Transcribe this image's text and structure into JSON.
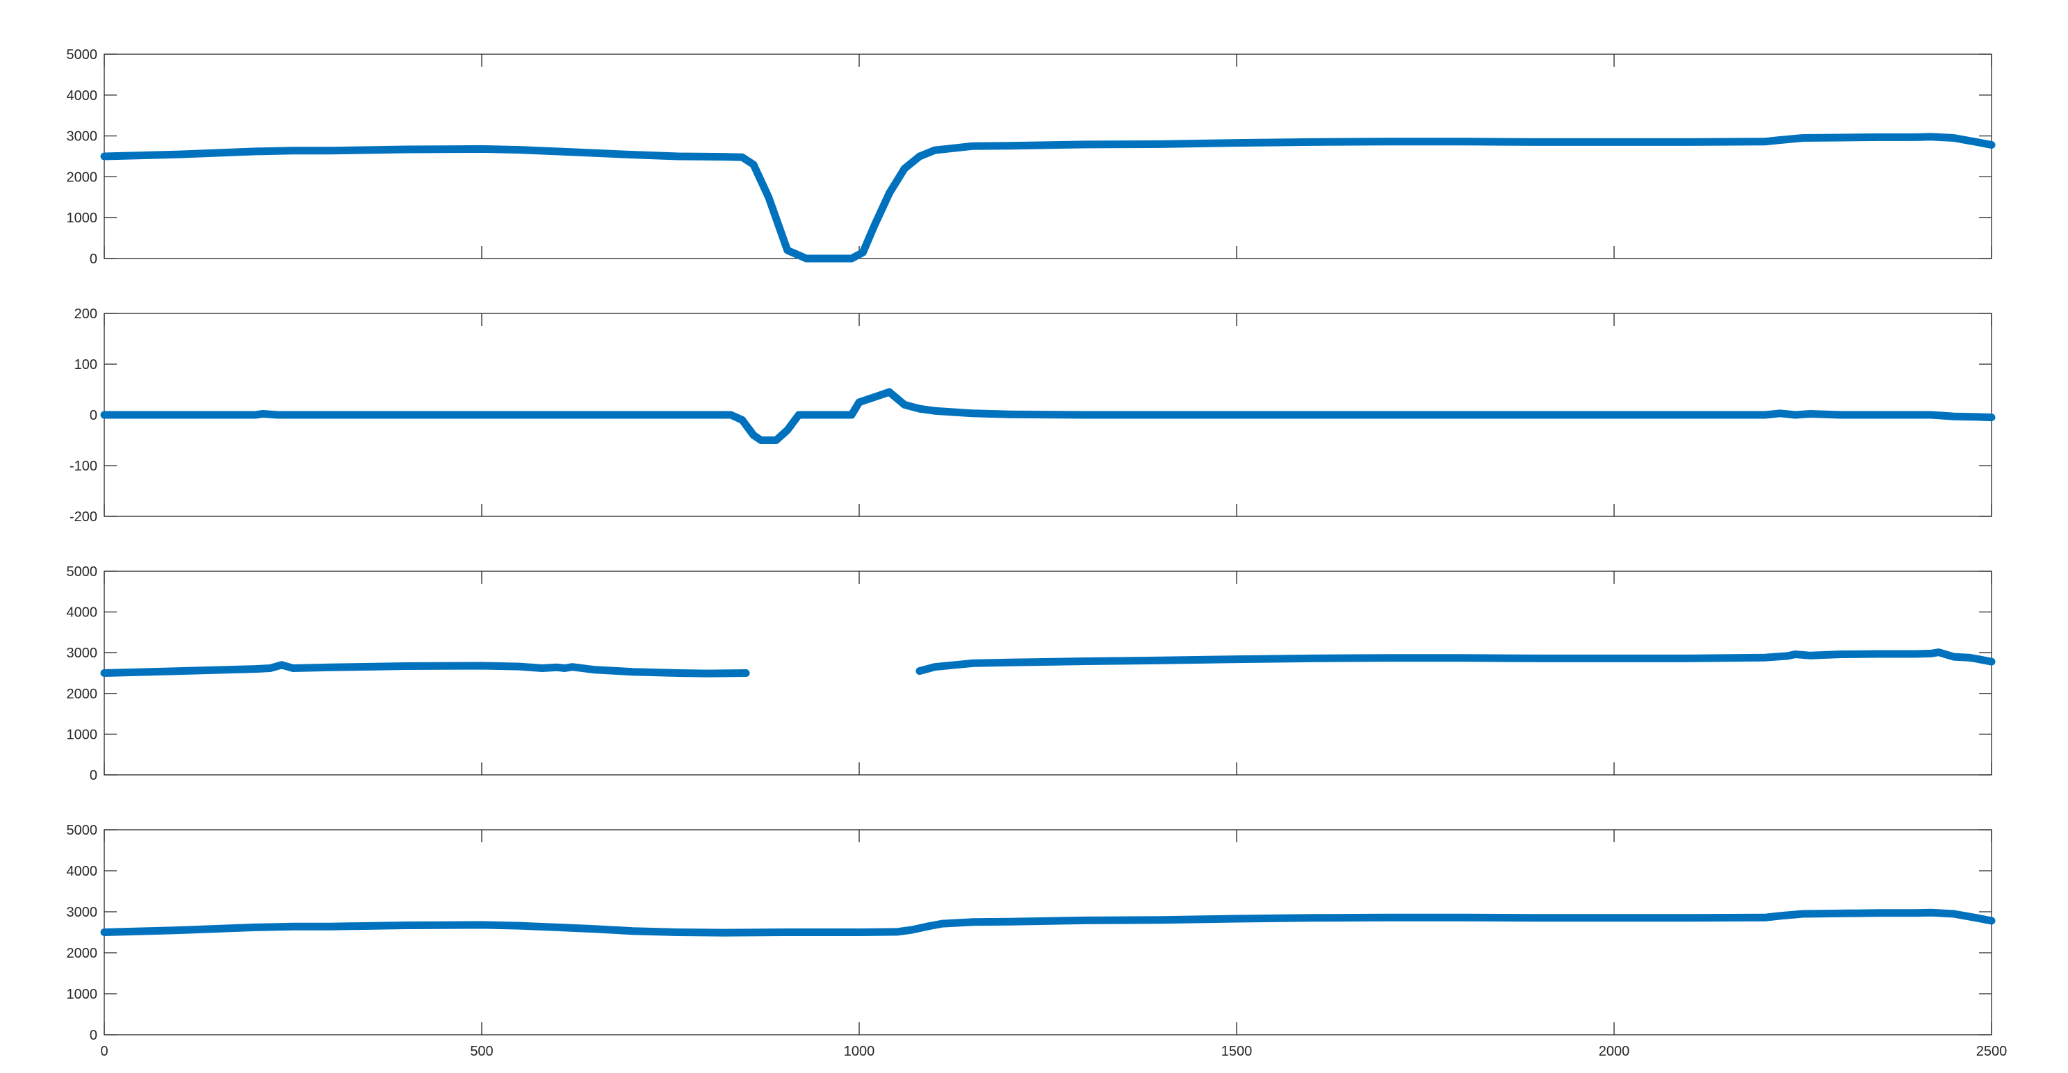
{
  "chart_data": [
    {
      "type": "line",
      "xlim": [
        0,
        2500
      ],
      "ylim": [
        0,
        5000
      ],
      "yticks": [
        "0",
        "1000",
        "2000",
        "3000",
        "4000",
        "5000"
      ],
      "xticks": [],
      "grid": false,
      "series": [
        {
          "color": "#0072BD",
          "x": [
            0,
            100,
            200,
            250,
            300,
            400,
            500,
            550,
            600,
            650,
            700,
            760,
            820,
            845,
            860,
            880,
            905,
            930,
            990,
            1005,
            1020,
            1040,
            1060,
            1080,
            1100,
            1150,
            1200,
            1300,
            1400,
            1500,
            1600,
            1700,
            1800,
            1900,
            2000,
            2100,
            2200,
            2220,
            2250,
            2300,
            2350,
            2400,
            2420,
            2450,
            2480,
            2500
          ],
          "y": [
            2500,
            2550,
            2620,
            2640,
            2640,
            2670,
            2680,
            2660,
            2620,
            2580,
            2540,
            2500,
            2490,
            2480,
            2300,
            1500,
            200,
            0,
            0,
            150,
            800,
            1600,
            2200,
            2500,
            2650,
            2750,
            2760,
            2790,
            2800,
            2830,
            2850,
            2860,
            2860,
            2850,
            2850,
            2850,
            2860,
            2900,
            2950,
            2960,
            2970,
            2970,
            2980,
            2950,
            2850,
            2780
          ]
        }
      ]
    },
    {
      "type": "line",
      "xlim": [
        0,
        2500
      ],
      "ylim": [
        -200,
        200
      ],
      "yticks": [
        "-200",
        "-100",
        "0",
        "100",
        "200"
      ],
      "xticks": [],
      "grid": false,
      "series": [
        {
          "color": "#0072BD",
          "x": [
            0,
            100,
            200,
            210,
            230,
            260,
            300,
            400,
            500,
            600,
            650,
            700,
            800,
            830,
            845,
            860,
            870,
            890,
            905,
            920,
            940,
            980,
            990,
            1000,
            1030,
            1040,
            1060,
            1080,
            1100,
            1150,
            1200,
            1300,
            1500,
            1700,
            1900,
            2100,
            2200,
            2220,
            2240,
            2260,
            2300,
            2400,
            2420,
            2450,
            2480,
            2500
          ],
          "y": [
            0,
            0,
            0,
            2,
            0,
            0,
            0,
            0,
            0,
            0,
            0,
            0,
            0,
            0,
            -10,
            -40,
            -50,
            -50,
            -30,
            0,
            0,
            0,
            0,
            25,
            40,
            45,
            20,
            12,
            8,
            3,
            1,
            0,
            0,
            0,
            0,
            0,
            0,
            3,
            0,
            2,
            0,
            0,
            0,
            -3,
            -4,
            -5
          ]
        }
      ]
    },
    {
      "type": "line",
      "xlim": [
        0,
        2500
      ],
      "ylim": [
        0,
        5000
      ],
      "yticks": [
        "0",
        "1000",
        "2000",
        "3000",
        "4000",
        "5000"
      ],
      "xticks": [],
      "grid": false,
      "series": [
        {
          "color": "#0072BD",
          "x": [
            0,
            100,
            200,
            220,
            235,
            250,
            300,
            400,
            500,
            550,
            580,
            600,
            610,
            620,
            650,
            700,
            760,
            800,
            850
          ],
          "y": [
            2500,
            2550,
            2600,
            2620,
            2700,
            2620,
            2640,
            2670,
            2680,
            2660,
            2620,
            2640,
            2620,
            2650,
            2580,
            2530,
            2500,
            2490,
            2500
          ]
        },
        {
          "color": "#0072BD",
          "x": [
            1080,
            1100,
            1150,
            1200,
            1300,
            1400,
            1500,
            1600,
            1700,
            1800,
            1900,
            2000,
            2100,
            2200,
            2230,
            2240,
            2260,
            2300,
            2350,
            2400,
            2420,
            2430,
            2450,
            2470,
            2480,
            2500
          ],
          "y": [
            2550,
            2650,
            2740,
            2760,
            2790,
            2810,
            2840,
            2860,
            2870,
            2870,
            2860,
            2860,
            2860,
            2880,
            2920,
            2960,
            2930,
            2960,
            2970,
            2970,
            2980,
            3010,
            2900,
            2880,
            2850,
            2780
          ]
        }
      ]
    },
    {
      "type": "line",
      "xlim": [
        0,
        2500
      ],
      "ylim": [
        0,
        5000
      ],
      "yticks": [
        "0",
        "1000",
        "2000",
        "3000",
        "4000",
        "5000"
      ],
      "xticks": [
        "0",
        "500",
        "1000",
        "1500",
        "2000",
        "2500"
      ],
      "grid": false,
      "series": [
        {
          "color": "#0072BD",
          "x": [
            0,
            100,
            200,
            250,
            300,
            400,
            500,
            550,
            600,
            650,
            700,
            760,
            820,
            900,
            1000,
            1050,
            1070,
            1090,
            1110,
            1150,
            1200,
            1300,
            1400,
            1500,
            1600,
            1700,
            1800,
            1900,
            2000,
            2100,
            2200,
            2220,
            2250,
            2300,
            2350,
            2400,
            2420,
            2450,
            2480,
            2500
          ],
          "y": [
            2500,
            2550,
            2620,
            2640,
            2640,
            2670,
            2680,
            2660,
            2620,
            2580,
            2530,
            2500,
            2490,
            2500,
            2500,
            2510,
            2560,
            2640,
            2710,
            2750,
            2760,
            2790,
            2800,
            2830,
            2850,
            2860,
            2860,
            2850,
            2850,
            2850,
            2860,
            2900,
            2950,
            2960,
            2970,
            2970,
            2980,
            2950,
            2850,
            2780
          ]
        }
      ]
    }
  ]
}
